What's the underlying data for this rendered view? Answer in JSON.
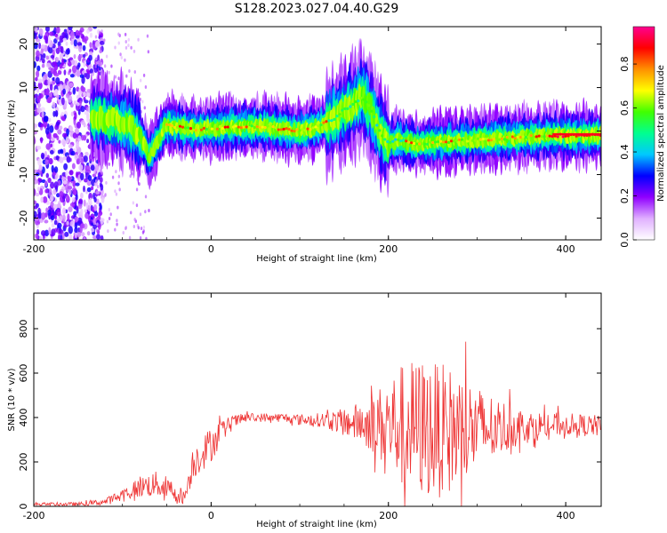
{
  "title": "S128.2023.027.04.40.G29",
  "chart_data": [
    {
      "type": "heatmap",
      "xlabel": "Height of straight line (km)",
      "ylabel": "Frequency (Hz)",
      "xlim": [
        -200,
        440
      ],
      "ylim": [
        -25,
        24
      ],
      "x_ticks": [
        -200,
        0,
        200,
        400
      ],
      "y_ticks": [
        -20,
        -10,
        0,
        10,
        20
      ],
      "colorbar": {
        "label": "Normalized spectral amplitude",
        "range": [
          0,
          0.97
        ],
        "ticks": [
          0.0,
          0.2,
          0.4,
          0.6,
          0.8
        ],
        "colors": [
          "#ffffff",
          "#e0b0ff",
          "#9000ff",
          "#0000ff",
          "#00c8ff",
          "#00ff90",
          "#40ff00",
          "#ffff00",
          "#ff9000",
          "#ff0000",
          "#ff0090"
        ]
      },
      "ridge": {
        "x": [
          -130,
          -110,
          -95,
          -85,
          -75,
          -70,
          -60,
          -50,
          -40,
          -20,
          0,
          20,
          40,
          60,
          80,
          100,
          120,
          140,
          150,
          160,
          170,
          180,
          190,
          200,
          210,
          230,
          260,
          300,
          340,
          380,
          420,
          440
        ],
        "y": [
          3,
          2.5,
          1.5,
          0,
          -3,
          -6,
          -2,
          1.5,
          1,
          0.5,
          0.5,
          1,
          1,
          1,
          0.5,
          0,
          1,
          3,
          5,
          6,
          8,
          5,
          0,
          -3,
          -2,
          -3,
          -2.5,
          -2,
          -1.5,
          -1,
          -1,
          -1
        ]
      }
    },
    {
      "type": "line",
      "xlabel": "Height of straight line (km)",
      "ylabel": "SNR (10 * v/v)",
      "xlim": [
        -200,
        440
      ],
      "ylim": [
        0,
        960
      ],
      "x_ticks": [
        -200,
        0,
        200,
        400
      ],
      "y_ticks": [
        0,
        200,
        400,
        600,
        800
      ],
      "color": "#ee3333",
      "envelope": {
        "x": [
          -200,
          -150,
          -120,
          -100,
          -80,
          -60,
          -40,
          -30,
          -20,
          0,
          10,
          25,
          40,
          60,
          80,
          100,
          120,
          150,
          180,
          200,
          220,
          240,
          260,
          280,
          300,
          320,
          340,
          360,
          380,
          400,
          420,
          440
        ],
        "mean": [
          10,
          10,
          20,
          50,
          90,
          100,
          60,
          40,
          200,
          280,
          330,
          380,
          400,
          400,
          400,
          390,
          390,
          380,
          370,
          370,
          360,
          350,
          340,
          340,
          345,
          350,
          360,
          360,
          365,
          370,
          365,
          360
        ],
        "spread": [
          8,
          8,
          15,
          30,
          50,
          60,
          50,
          30,
          80,
          80,
          60,
          30,
          20,
          20,
          20,
          25,
          30,
          60,
          120,
          220,
          300,
          320,
          300,
          280,
          200,
          150,
          100,
          70,
          60,
          50,
          50,
          50
        ]
      }
    }
  ]
}
